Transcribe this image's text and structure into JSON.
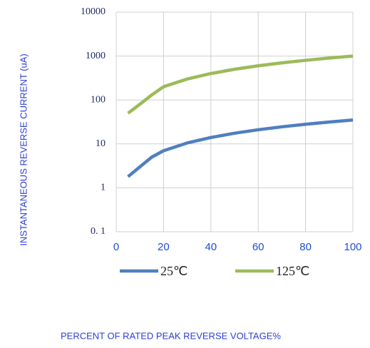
{
  "chart_data": {
    "type": "line",
    "y_label": "INSTANTANEOUS REVERSE CURRENT (uA)",
    "x_label": "PERCENT OF RATED PEAK REVERSE VOLTAGE%",
    "x": [
      5,
      10,
      15,
      20,
      30,
      40,
      50,
      60,
      70,
      80,
      90,
      100
    ],
    "series": [
      {
        "name": "25℃",
        "color": "#4f7fbf",
        "values": [
          1.8,
          3,
          5,
          7,
          10.5,
          14,
          17.5,
          21,
          24.5,
          28,
          31.5,
          35
        ]
      },
      {
        "name": "125℃",
        "color": "#9bbb59",
        "values": [
          50,
          80,
          130,
          200,
          300,
          400,
          500,
          600,
          700,
          800,
          900,
          1000
        ]
      }
    ],
    "xlim": [
      0,
      100
    ],
    "xticks": [
      0,
      20,
      40,
      60,
      80,
      100
    ],
    "ylim": [
      0.1,
      10000
    ],
    "y_log": true,
    "yticks": [
      {
        "value": 0.1,
        "label": "0. 1"
      },
      1,
      10,
      100,
      1000,
      10000
    ],
    "grid": true,
    "legend": "bottom"
  }
}
